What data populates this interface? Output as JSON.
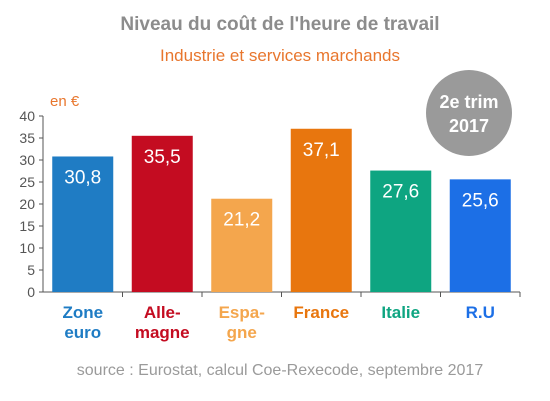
{
  "chart_data": {
    "type": "bar",
    "title": "Niveau du coût de l'heure de travail",
    "subtitle": "Industrie et services marchands",
    "ylabel": "en €",
    "ylim": [
      0,
      40
    ],
    "yticks": [
      0,
      5,
      10,
      15,
      20,
      25,
      30,
      35,
      40
    ],
    "grid": false,
    "categories": [
      {
        "label": [
          "Zone",
          "euro"
        ],
        "value": 30.8,
        "value_label": "30,8",
        "color": "#1f7cc4"
      },
      {
        "label": [
          "Alle-",
          "magne"
        ],
        "value": 35.5,
        "value_label": "35,5",
        "color": "#c40c21"
      },
      {
        "label": [
          "Espa-",
          "gne"
        ],
        "value": 21.2,
        "value_label": "21,2",
        "color": "#f4a64d"
      },
      {
        "label": [
          "France"
        ],
        "value": 37.1,
        "value_label": "37,1",
        "color": "#e8760e"
      },
      {
        "label": [
          "Italie"
        ],
        "value": 27.6,
        "value_label": "27,6",
        "color": "#0ea581"
      },
      {
        "label": [
          "R.U"
        ],
        "value": 25.6,
        "value_label": "25,6",
        "color": "#1c6fe6"
      }
    ],
    "annotation": {
      "lines": [
        "2e trim",
        "2017"
      ],
      "color": "#9a9a9a"
    },
    "source": "source : Eurostat, calcul Coe-Rexecode, septembre 2017"
  }
}
